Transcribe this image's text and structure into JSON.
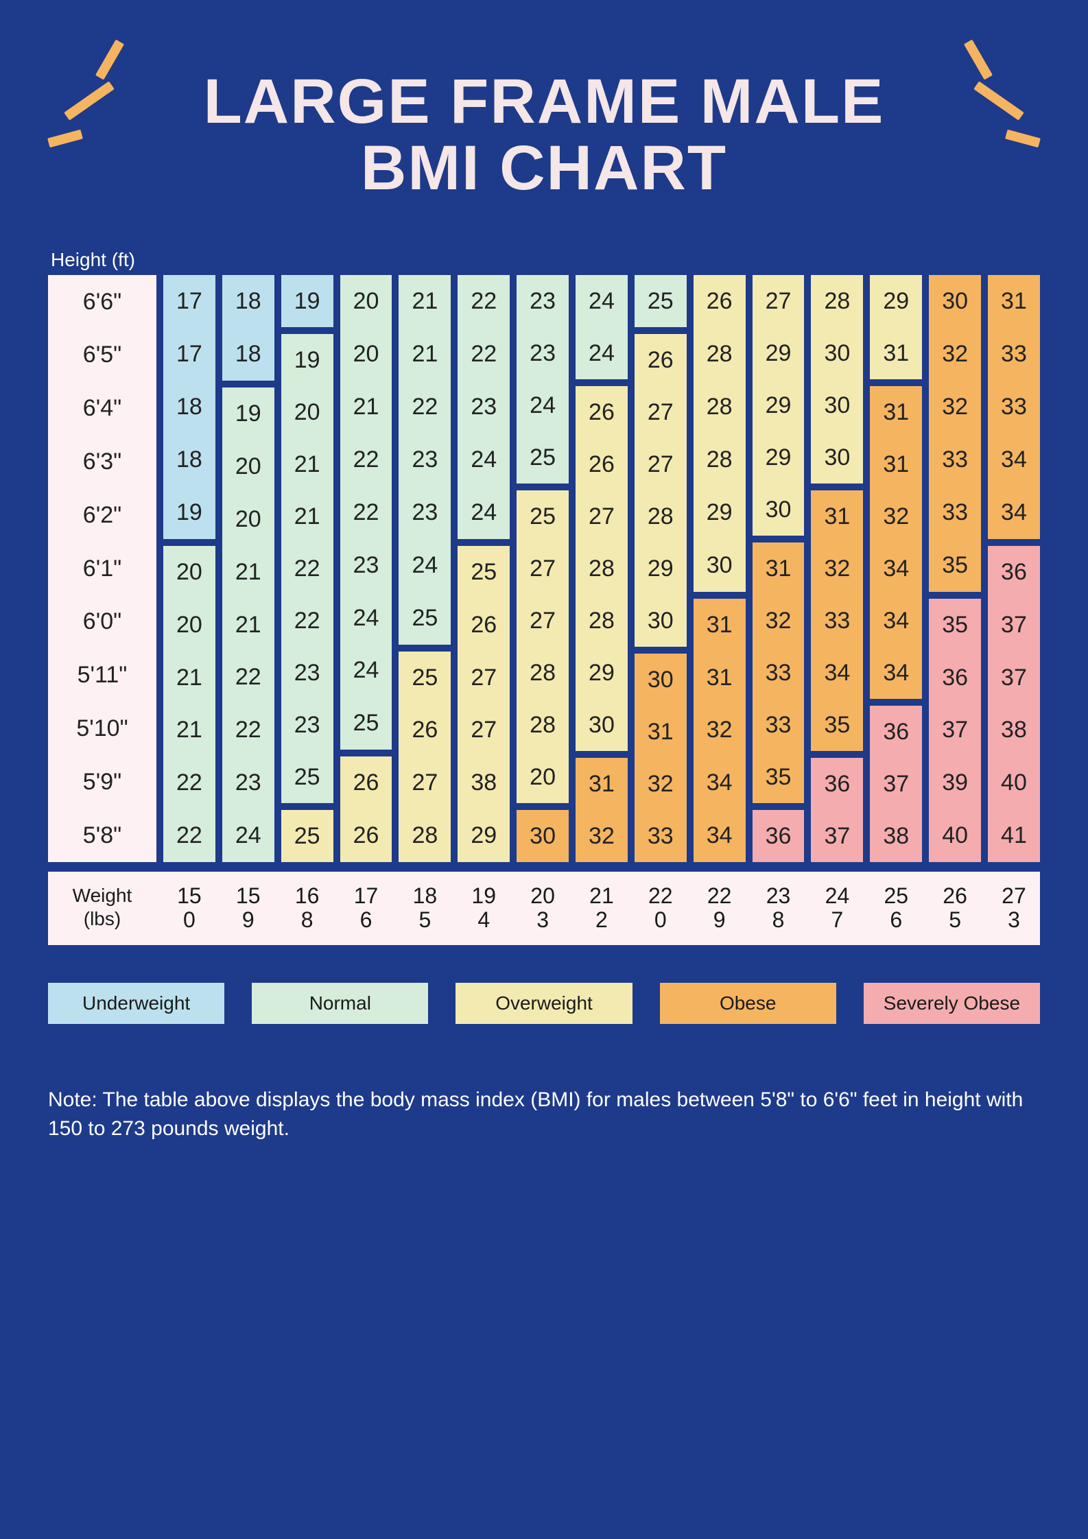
{
  "title_line1": "LARGE FRAME MALE",
  "title_line2": "BMI CHART",
  "y_axis_title": "Height (ft)",
  "x_axis_title_line1": "Weight",
  "x_axis_title_line2": "(lbs)",
  "note": "Note: The table above displays the body mass index (BMI) for males between 5'8\" to 6'6\" feet in height with 150 to 273 pounds weight.",
  "colors": {
    "background": "#1e3a8a",
    "accent": "#f5b460",
    "title_text": "#f5e6e8",
    "axis_bg": "#fdf1f3",
    "underweight": "#bde0ee",
    "normal": "#d5edda",
    "overweight": "#f3eab1",
    "obese": "#f5b460",
    "severe": "#f5acaf"
  },
  "categories": {
    "u": {
      "label": "Underweight",
      "color": "#bde0ee"
    },
    "n": {
      "label": "Normal",
      "color": "#d5edda"
    },
    "w": {
      "label": "Overweight",
      "color": "#f3eab1"
    },
    "o": {
      "label": "Obese",
      "color": "#f5b460"
    },
    "s": {
      "label": "Severely Obese",
      "color": "#f5acaf"
    }
  },
  "legend_order": [
    "u",
    "n",
    "w",
    "o",
    "s"
  ],
  "heights": [
    "6'6\"",
    "6'5\"",
    "6'4\"",
    "6'3\"",
    "6'2\"",
    "6'1\"",
    "6'0\"",
    "5'11\"",
    "5'10\"",
    "5'9\"",
    "5'8\""
  ],
  "weights": [
    "150",
    "159",
    "168",
    "176",
    "185",
    "194",
    "203",
    "212",
    "220",
    "229",
    "238",
    "247",
    "256",
    "265",
    "273"
  ],
  "grid": [
    [
      {
        "v": 17,
        "c": "u"
      },
      {
        "v": 18,
        "c": "u"
      },
      {
        "v": 19,
        "c": "u"
      },
      {
        "v": 20,
        "c": "n"
      },
      {
        "v": 21,
        "c": "n"
      },
      {
        "v": 22,
        "c": "n"
      },
      {
        "v": 23,
        "c": "n"
      },
      {
        "v": 24,
        "c": "n"
      },
      {
        "v": 25,
        "c": "n"
      },
      {
        "v": 26,
        "c": "w"
      },
      {
        "v": 27,
        "c": "w"
      },
      {
        "v": 28,
        "c": "w"
      },
      {
        "v": 29,
        "c": "w"
      },
      {
        "v": 30,
        "c": "o"
      },
      {
        "v": 31,
        "c": "o"
      }
    ],
    [
      {
        "v": 17,
        "c": "u"
      },
      {
        "v": 18,
        "c": "u"
      },
      {
        "v": 19,
        "c": "n"
      },
      {
        "v": 20,
        "c": "n"
      },
      {
        "v": 21,
        "c": "n"
      },
      {
        "v": 22,
        "c": "n"
      },
      {
        "v": 23,
        "c": "n"
      },
      {
        "v": 24,
        "c": "n"
      },
      {
        "v": 26,
        "c": "w"
      },
      {
        "v": 28,
        "c": "w"
      },
      {
        "v": 29,
        "c": "w"
      },
      {
        "v": 30,
        "c": "w"
      },
      {
        "v": 31,
        "c": "w"
      },
      {
        "v": 32,
        "c": "o"
      },
      {
        "v": 33,
        "c": "o"
      }
    ],
    [
      {
        "v": 18,
        "c": "u"
      },
      {
        "v": 19,
        "c": "n"
      },
      {
        "v": 20,
        "c": "n"
      },
      {
        "v": 21,
        "c": "n"
      },
      {
        "v": 22,
        "c": "n"
      },
      {
        "v": 23,
        "c": "n"
      },
      {
        "v": 24,
        "c": "n"
      },
      {
        "v": 26,
        "c": "w"
      },
      {
        "v": 27,
        "c": "w"
      },
      {
        "v": 28,
        "c": "w"
      },
      {
        "v": 29,
        "c": "w"
      },
      {
        "v": 30,
        "c": "w"
      },
      {
        "v": 31,
        "c": "o"
      },
      {
        "v": 32,
        "c": "o"
      },
      {
        "v": 33,
        "c": "o"
      }
    ],
    [
      {
        "v": 18,
        "c": "u"
      },
      {
        "v": 20,
        "c": "n"
      },
      {
        "v": 21,
        "c": "n"
      },
      {
        "v": 22,
        "c": "n"
      },
      {
        "v": 23,
        "c": "n"
      },
      {
        "v": 24,
        "c": "n"
      },
      {
        "v": 25,
        "c": "n"
      },
      {
        "v": 26,
        "c": "w"
      },
      {
        "v": 27,
        "c": "w"
      },
      {
        "v": 28,
        "c": "w"
      },
      {
        "v": 29,
        "c": "w"
      },
      {
        "v": 30,
        "c": "w"
      },
      {
        "v": 31,
        "c": "o"
      },
      {
        "v": 33,
        "c": "o"
      },
      {
        "v": 34,
        "c": "o"
      }
    ],
    [
      {
        "v": 19,
        "c": "u"
      },
      {
        "v": 20,
        "c": "n"
      },
      {
        "v": 21,
        "c": "n"
      },
      {
        "v": 22,
        "c": "n"
      },
      {
        "v": 23,
        "c": "n"
      },
      {
        "v": 24,
        "c": "n"
      },
      {
        "v": 25,
        "c": "w"
      },
      {
        "v": 27,
        "c": "w"
      },
      {
        "v": 28,
        "c": "w"
      },
      {
        "v": 29,
        "c": "w"
      },
      {
        "v": 30,
        "c": "w"
      },
      {
        "v": 31,
        "c": "o"
      },
      {
        "v": 32,
        "c": "o"
      },
      {
        "v": 33,
        "c": "o"
      },
      {
        "v": 34,
        "c": "o"
      }
    ],
    [
      {
        "v": 20,
        "c": "n"
      },
      {
        "v": 21,
        "c": "n"
      },
      {
        "v": 22,
        "c": "n"
      },
      {
        "v": 23,
        "c": "n"
      },
      {
        "v": 24,
        "c": "n"
      },
      {
        "v": 25,
        "c": "w"
      },
      {
        "v": 27,
        "c": "w"
      },
      {
        "v": 28,
        "c": "w"
      },
      {
        "v": 29,
        "c": "w"
      },
      {
        "v": 30,
        "c": "w"
      },
      {
        "v": 31,
        "c": "o"
      },
      {
        "v": 32,
        "c": "o"
      },
      {
        "v": 34,
        "c": "o"
      },
      {
        "v": 35,
        "c": "o"
      },
      {
        "v": 36,
        "c": "s"
      }
    ],
    [
      {
        "v": 20,
        "c": "n"
      },
      {
        "v": 21,
        "c": "n"
      },
      {
        "v": 22,
        "c": "n"
      },
      {
        "v": 24,
        "c": "n"
      },
      {
        "v": 25,
        "c": "n"
      },
      {
        "v": 26,
        "c": "w"
      },
      {
        "v": 27,
        "c": "w"
      },
      {
        "v": 28,
        "c": "w"
      },
      {
        "v": 30,
        "c": "w"
      },
      {
        "v": 31,
        "c": "o"
      },
      {
        "v": 32,
        "c": "o"
      },
      {
        "v": 33,
        "c": "o"
      },
      {
        "v": 34,
        "c": "o"
      },
      {
        "v": 35,
        "c": "s"
      },
      {
        "v": 37,
        "c": "s"
      }
    ],
    [
      {
        "v": 21,
        "c": "n"
      },
      {
        "v": 22,
        "c": "n"
      },
      {
        "v": 23,
        "c": "n"
      },
      {
        "v": 24,
        "c": "n"
      },
      {
        "v": 25,
        "c": "w"
      },
      {
        "v": 27,
        "c": "w"
      },
      {
        "v": 28,
        "c": "w"
      },
      {
        "v": 29,
        "c": "w"
      },
      {
        "v": 30,
        "c": "o"
      },
      {
        "v": 31,
        "c": "o"
      },
      {
        "v": 33,
        "c": "o"
      },
      {
        "v": 34,
        "c": "o"
      },
      {
        "v": 34,
        "c": "o"
      },
      {
        "v": 36,
        "c": "s"
      },
      {
        "v": 37,
        "c": "s"
      }
    ],
    [
      {
        "v": 21,
        "c": "n"
      },
      {
        "v": 22,
        "c": "n"
      },
      {
        "v": 23,
        "c": "n"
      },
      {
        "v": 25,
        "c": "n"
      },
      {
        "v": 26,
        "c": "w"
      },
      {
        "v": 27,
        "c": "w"
      },
      {
        "v": 28,
        "c": "w"
      },
      {
        "v": 30,
        "c": "w"
      },
      {
        "v": 31,
        "c": "o"
      },
      {
        "v": 32,
        "c": "o"
      },
      {
        "v": 33,
        "c": "o"
      },
      {
        "v": 35,
        "c": "o"
      },
      {
        "v": 36,
        "c": "s"
      },
      {
        "v": 37,
        "c": "s"
      },
      {
        "v": 38,
        "c": "s"
      }
    ],
    [
      {
        "v": 22,
        "c": "n"
      },
      {
        "v": 23,
        "c": "n"
      },
      {
        "v": 25,
        "c": "n"
      },
      {
        "v": 26,
        "c": "w"
      },
      {
        "v": 27,
        "c": "w"
      },
      {
        "v": 38,
        "c": "w"
      },
      {
        "v": 20,
        "c": "w"
      },
      {
        "v": 31,
        "c": "o"
      },
      {
        "v": 32,
        "c": "o"
      },
      {
        "v": 34,
        "c": "o"
      },
      {
        "v": 35,
        "c": "o"
      },
      {
        "v": 36,
        "c": "s"
      },
      {
        "v": 37,
        "c": "s"
      },
      {
        "v": 39,
        "c": "s"
      },
      {
        "v": 40,
        "c": "s"
      }
    ],
    [
      {
        "v": 22,
        "c": "n"
      },
      {
        "v": 24,
        "c": "n"
      },
      {
        "v": 25,
        "c": "w"
      },
      {
        "v": 26,
        "c": "w"
      },
      {
        "v": 28,
        "c": "w"
      },
      {
        "v": 29,
        "c": "w"
      },
      {
        "v": 30,
        "c": "o"
      },
      {
        "v": 32,
        "c": "o"
      },
      {
        "v": 33,
        "c": "o"
      },
      {
        "v": 34,
        "c": "o"
      },
      {
        "v": 36,
        "c": "s"
      },
      {
        "v": 37,
        "c": "s"
      },
      {
        "v": 38,
        "c": "s"
      },
      {
        "v": 40,
        "c": "s"
      },
      {
        "v": 41,
        "c": "s"
      }
    ]
  ],
  "cell_font_size": 34,
  "grid_gap": 10,
  "row_count": 11,
  "col_count": 15
}
